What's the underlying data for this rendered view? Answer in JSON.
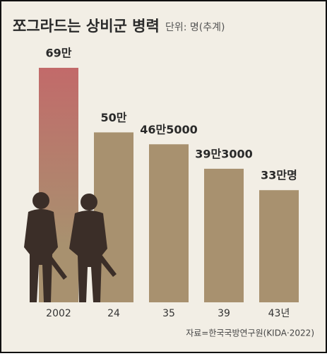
{
  "chart_data": {
    "type": "bar",
    "title": "쪼그라드는 상비군 병력",
    "subtitle": "단위: 명(추계)",
    "categories": [
      "2002",
      "24",
      "35",
      "39",
      "43년"
    ],
    "values": [
      690000,
      500000,
      465000,
      393000,
      330000
    ],
    "value_labels": [
      "69만",
      "50만",
      "46만5000",
      "39만3000",
      "33만명"
    ],
    "color": "#a8916f",
    "highlight_color": "#c26a6a",
    "source": "자료=한국국방연구원(KIDA·2022)"
  }
}
